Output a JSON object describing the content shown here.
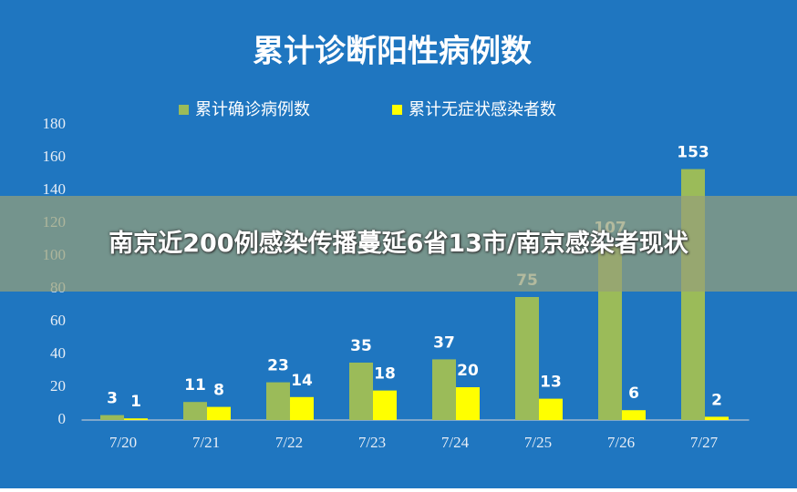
{
  "chart_data": {
    "type": "bar",
    "title": "累计诊断阳性病例数",
    "categories": [
      "7/20",
      "7/21",
      "7/22",
      "7/23",
      "7/24",
      "7/25",
      "7/26",
      "7/27"
    ],
    "series": [
      {
        "name": "累计确诊病例数",
        "color": "#9bbb59",
        "values": [
          3,
          11,
          23,
          35,
          37,
          75,
          107,
          153
        ]
      },
      {
        "name": "累计无症状感染者数",
        "color": "#ffff00",
        "values": [
          1,
          8,
          14,
          18,
          20,
          13,
          6,
          2
        ]
      }
    ],
    "ylim": [
      0,
      180
    ],
    "yticks": [
      0,
      20,
      40,
      60,
      80,
      100,
      120,
      140,
      160,
      180
    ],
    "legend": "top"
  },
  "overlay": {
    "headline": "南京近200例感染传播蔓延6省13市/南京感染者现状"
  }
}
